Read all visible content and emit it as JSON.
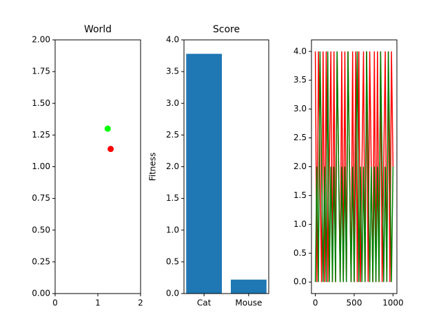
{
  "chart_data": [
    {
      "type": "scatter",
      "title": "World",
      "series": [
        {
          "color": "#00ff00",
          "x": [
            1.23
          ],
          "y": [
            1.3
          ]
        },
        {
          "color": "#ff0000",
          "x": [
            1.3
          ],
          "y": [
            1.14
          ]
        }
      ],
      "xlim": [
        0,
        2
      ],
      "ylim": [
        0,
        2
      ],
      "xticks": [
        0,
        1,
        2
      ],
      "yticks": [
        {
          "value": 0,
          "label": "0.00"
        },
        {
          "value": 0.25,
          "label": "0.25"
        },
        {
          "value": 0.5,
          "label": "0.50"
        },
        {
          "value": 0.75,
          "label": "0.75"
        },
        {
          "value": 1,
          "label": "1.00"
        },
        {
          "value": 1.25,
          "label": "1.25"
        },
        {
          "value": 1.5,
          "label": "1.50"
        },
        {
          "value": 1.75,
          "label": "1.75"
        },
        {
          "value": 2,
          "label": "2.00"
        }
      ]
    },
    {
      "type": "bar",
      "title": "Score",
      "ylabel": "Fitness",
      "categories": [
        "Cat",
        "Mouse"
      ],
      "values": [
        3.78,
        0.22
      ],
      "color": "#1f77b4",
      "ylim": [
        0,
        4
      ],
      "yticks": [
        {
          "value": 0,
          "label": "0.0"
        },
        {
          "value": 0.5,
          "label": "0.5"
        },
        {
          "value": 1,
          "label": "1.0"
        },
        {
          "value": 1.5,
          "label": "1.5"
        },
        {
          "value": 2,
          "label": "2.0"
        },
        {
          "value": 2.5,
          "label": "2.5"
        },
        {
          "value": 3,
          "label": "3.0"
        },
        {
          "value": 3.5,
          "label": "3.5"
        },
        {
          "value": 4,
          "label": "4.0"
        }
      ]
    },
    {
      "type": "line",
      "x": [
        0,
        20,
        40,
        60,
        80,
        100,
        120,
        140,
        160,
        180,
        200,
        220,
        240,
        260,
        280,
        300,
        320,
        340,
        360,
        380,
        400,
        420,
        440,
        460,
        480,
        500,
        520,
        540,
        560,
        580,
        600,
        620,
        640,
        660,
        680,
        700,
        720,
        740,
        760,
        780,
        800,
        820,
        840,
        860,
        880,
        900,
        920,
        940,
        960,
        980,
        1000
      ],
      "series": [
        {
          "color": "#ff0000",
          "values": [
            4,
            0,
            4,
            2,
            0,
            4,
            0,
            4,
            0,
            2,
            4,
            0,
            4,
            0,
            4,
            2,
            0,
            4,
            0,
            4,
            0,
            4,
            2,
            0,
            4,
            0,
            4,
            0,
            4,
            0,
            2,
            4,
            0,
            4,
            0,
            4,
            2,
            0,
            4,
            0,
            4,
            0,
            4,
            0,
            2,
            4,
            0,
            4,
            0,
            4,
            2
          ]
        },
        {
          "color": "#008000",
          "values": [
            0,
            2,
            0,
            4,
            2,
            0,
            2,
            0,
            4,
            0,
            2,
            0,
            2,
            0,
            4,
            2,
            0,
            2,
            0,
            2,
            0,
            4,
            2,
            0,
            2,
            0,
            2,
            4,
            0,
            2,
            0,
            2,
            0,
            4,
            2,
            0,
            2,
            0,
            2,
            0,
            2,
            0,
            4,
            2,
            0,
            2,
            0,
            4,
            2,
            0,
            2
          ]
        }
      ],
      "xlim": [
        -50,
        1050
      ],
      "ylim": [
        -0.2,
        4.2
      ],
      "xticks": [
        0,
        500,
        1000
      ],
      "yticks": [
        {
          "value": 0,
          "label": "0.0"
        },
        {
          "value": 0.5,
          "label": "0.5"
        },
        {
          "value": 1,
          "label": "1.0"
        },
        {
          "value": 1.5,
          "label": "1.5"
        },
        {
          "value": 2,
          "label": "2.0"
        },
        {
          "value": 2.5,
          "label": "2.5"
        },
        {
          "value": 3,
          "label": "3.0"
        },
        {
          "value": 3.5,
          "label": "3.5"
        },
        {
          "value": 4,
          "label": "4.0"
        }
      ]
    }
  ]
}
